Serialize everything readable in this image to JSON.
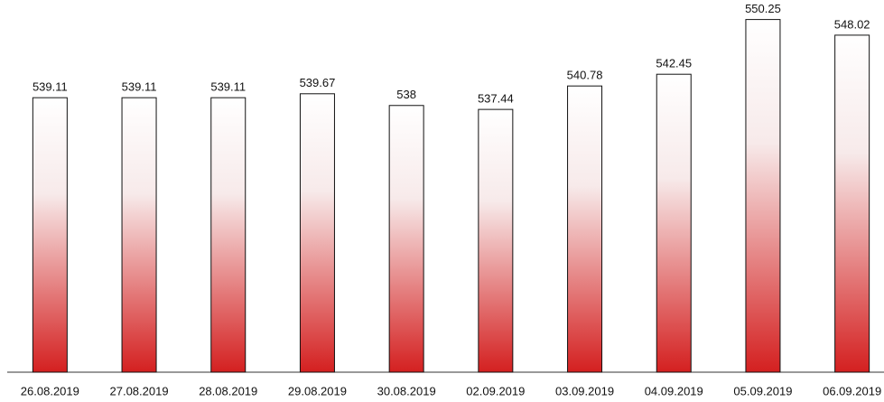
{
  "chart_data": {
    "type": "bar",
    "categories": [
      "26.08.2019",
      "27.08.2019",
      "28.08.2019",
      "29.08.2019",
      "30.08.2019",
      "02.09.2019",
      "03.09.2019",
      "04.09.2019",
      "05.09.2019",
      "06.09.2019"
    ],
    "values": [
      539.11,
      539.11,
      539.11,
      539.67,
      538,
      537.44,
      540.78,
      542.45,
      550.25,
      548.02
    ],
    "color": "#d42020",
    "ylim": [
      500,
      552
    ]
  }
}
